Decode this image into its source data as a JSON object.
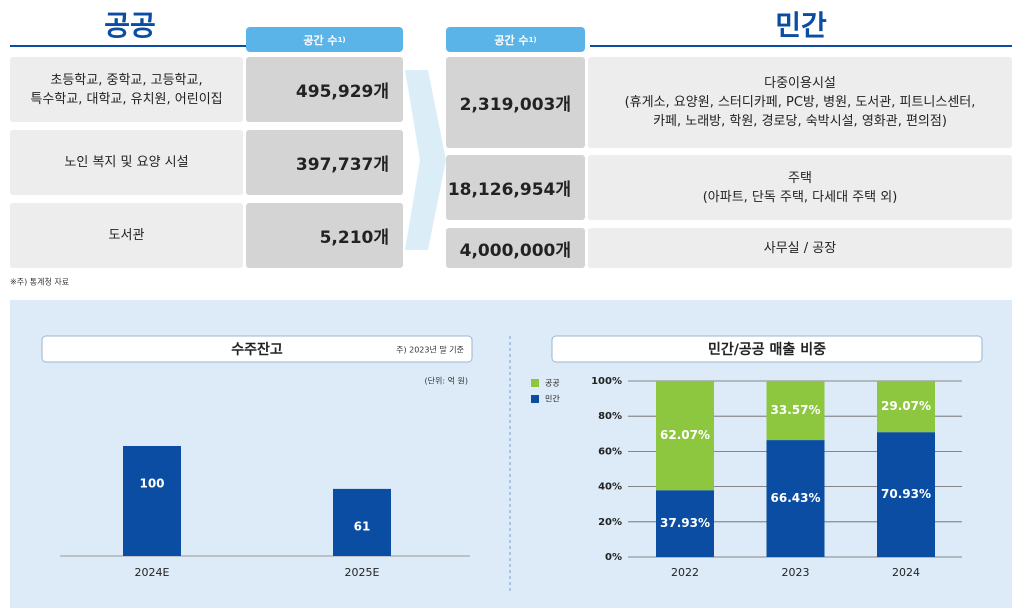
{
  "public": {
    "title": "공공",
    "header": "공간 수",
    "header_note": "1)",
    "rows": [
      {
        "label": [
          "초등학교, 중학교, 고등학교,",
          "특수학교, 대학교, 유치원, 어린이집"
        ],
        "count": "495,929개"
      },
      {
        "label": [
          "노인 복지 및 요양 시설"
        ],
        "count": "397,737개"
      },
      {
        "label": [
          "도서관"
        ],
        "count": "5,210개"
      }
    ]
  },
  "private": {
    "title": "민간",
    "header": "공간 수",
    "header_note": "1)",
    "rows": [
      {
        "count": "2,319,003개",
        "label": [
          "다중이용시설",
          "(휴게소, 요양원, 스터디카페, PC방, 병원, 도서관, 피트니스센터,",
          "카페, 노래방, 학원, 경로당, 숙박시설, 영화관, 편의점)"
        ]
      },
      {
        "count": "18,126,954개",
        "label": [
          "주택",
          "(아파트, 단독 주택, 다세대 주택 외)"
        ]
      },
      {
        "count": "4,000,000개",
        "label": [
          "사무실 / 공장"
        ]
      }
    ]
  },
  "footnote": "※주) 통계청 자료",
  "chart_data": [
    {
      "type": "bar",
      "title": "수주잔고",
      "note": "주) 2023년 말 기준",
      "unit": "(단위: 억 원)",
      "categories": [
        "2024E",
        "2025E"
      ],
      "values": [
        100,
        61
      ],
      "color": "#0a4da2"
    },
    {
      "type": "stacked_bar",
      "title": "민간/공공 매출 비중",
      "categories": [
        "2022",
        "2023",
        "2024"
      ],
      "series": [
        {
          "name": "민간",
          "color": "#0a4da2",
          "values": [
            37.93,
            66.43,
            70.93
          ],
          "value_labels": [
            "37.93%",
            "66.43%",
            "70.93%"
          ]
        },
        {
          "name": "공공",
          "color": "#8dc63f",
          "values": [
            62.07,
            33.57,
            29.07
          ],
          "value_labels": [
            "62.07%",
            "33.57%",
            "29.07%"
          ]
        }
      ],
      "ylim": [
        0,
        100
      ],
      "yticks": [
        {
          "value": 0,
          "label": "0%"
        },
        {
          "value": 20,
          "label": "20%"
        },
        {
          "value": 40,
          "label": "40%"
        },
        {
          "value": 60,
          "label": "60%"
        },
        {
          "value": 80,
          "label": "80%"
        },
        {
          "value": 100,
          "label": "100%"
        }
      ],
      "grid": true,
      "legend": "left"
    }
  ]
}
